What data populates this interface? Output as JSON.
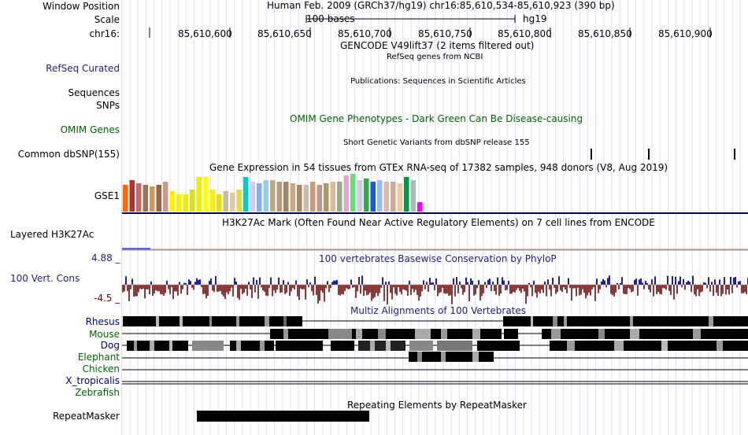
{
  "header": {
    "window_position_label": "Window Position",
    "window_position_value": "Human Feb. 2009 (GRCh37/hg19)   chr16:85,610,534-85,610,923 (390 bp)",
    "scale_label": "Scale",
    "scale_bar_text": "100 bases",
    "scale_assembly": "hg19",
    "chrom_label": "chr16:",
    "ticks": [
      "85,610,600",
      "85,610,650",
      "85,610,700",
      "85,610,750",
      "85,610,800",
      "85,610,850",
      "85,610,900"
    ]
  },
  "tracks": {
    "gencode_title": "GENCODE V49lift37 (2 items filtered out)",
    "refseq_subtitle": "RefSeq genes from NCBI",
    "refseq_label": "RefSeq Curated",
    "publications_title": "Publications: Sequences in Scientific Articles",
    "sequences_label": "Sequences",
    "snps_label": "SNPs",
    "omim_title": "OMIM Gene Phenotypes - Dark Green Can Be Disease-causing",
    "omim_label": "OMIM Genes",
    "dbsnp_title": "Short Genetic Variants from dbSNP release 155",
    "dbsnp_label": "Common dbSNP(155)",
    "gtex_title": "Gene Expression in 54 tissues from GTEx RNA-seq of 17382 samples, 948 donors (V8, Aug 2019)",
    "gtex_label": "GSE1",
    "h3k27ac_title": "H3K27Ac Mark (Often Found Near Active Regulatory Elements) on 7 cell lines from ENCODE",
    "h3k27ac_label": "Layered H3K27Ac",
    "phylop_title": "100 vertebrates Basewise Conservation by PhyloP",
    "phylop_label": "100 Vert. Cons",
    "phylop_max": "4.88 _",
    "phylop_min": "-4.5 _",
    "multiz_title": "Multiz Alignments of 100 Vertebrates",
    "species": [
      {
        "name": "Rhesus",
        "color": "#000080"
      },
      {
        "name": "Mouse",
        "color": "#006400"
      },
      {
        "name": "Dog",
        "color": "#000080"
      },
      {
        "name": "Elephant",
        "color": "#006400"
      },
      {
        "name": "Chicken",
        "color": "#006400"
      },
      {
        "name": "X_tropicalis",
        "color": "#000080"
      },
      {
        "name": "Zebrafish",
        "color": "#006400"
      }
    ],
    "repeat_title": "Repeating Elements by RepeatMasker",
    "repeat_label": "RepeatMasker"
  },
  "gtex_colors": [
    "#FF6600",
    "#AA3333",
    "#CC6666",
    "#997755",
    "#CC9966",
    "#996644",
    "#CC9988",
    "#FFEE00",
    "#FFEE00",
    "#EEEE00",
    "#DDDD22",
    "#EEEE00",
    "#FFFF00",
    "#FFEE00",
    "#EEDD00",
    "#CCBB99",
    "#DDCCAA",
    "#DDDD44",
    "#00CCCC",
    "#CCCCFF",
    "#88AAEE",
    "#99CCDD",
    "#BBAA88",
    "#BB9977",
    "#998866",
    "#CCAA88",
    "#AA8866",
    "#CCBBAA",
    "#CC9977",
    "#BB9988",
    "#AA9966",
    "#DDBB99",
    "#99AA88",
    "#DDAACC",
    "#66DD77",
    "#CCCCDD",
    "#33AA44",
    "#2255DD",
    "#99BBFF",
    "#DDBBAA",
    "#CCAA99",
    "#EECC99",
    "#009944",
    "#AABBBB",
    "#FF00FF"
  ],
  "colors": {
    "grid": "#ddddff",
    "center_line": "#000088",
    "phylop_pos": "#1f1f9f",
    "phylop_neg": "#8b3a3a"
  }
}
